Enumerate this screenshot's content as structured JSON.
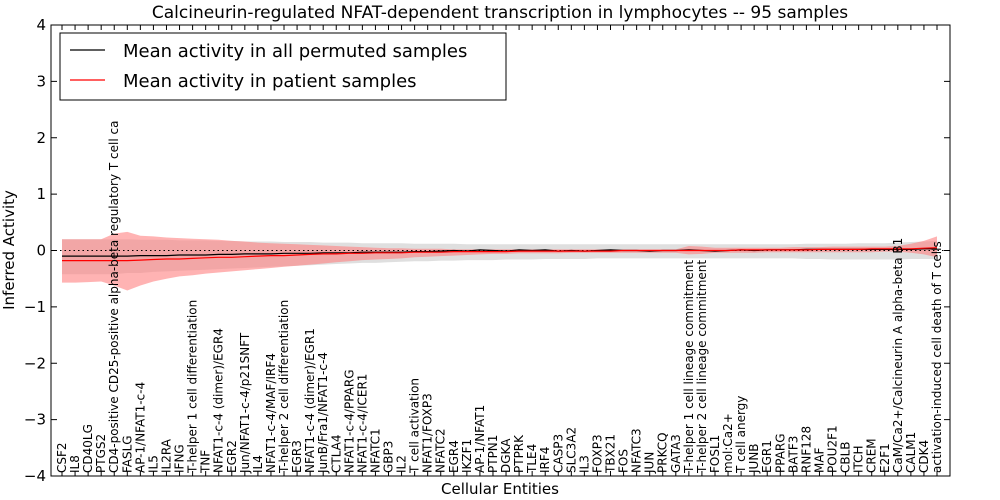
{
  "chart_data": {
    "type": "line",
    "title": "Calcineurin-regulated NFAT-dependent transcription in lymphocytes -- 95 samples",
    "xlabel": "Cellular Entities",
    "ylabel": "Inferred Activity",
    "ylim": [
      -4,
      4
    ],
    "yticks": [
      "4",
      "3",
      "2",
      "1",
      "0",
      "−1",
      "−2",
      "−3",
      "−4"
    ],
    "ytick_values": [
      4,
      3,
      2,
      1,
      0,
      -1,
      -2,
      -3,
      -4
    ],
    "legend_position": "top-left",
    "categories": [
      "CSF2",
      "IL8",
      "CD40LG",
      "PTGS2",
      "CD4-positive CD25-positive alpha-beta regulatory T cell ca",
      "FASLG",
      "AP-1/NFAT1-c-4",
      "IL5",
      "IL2RA",
      "IFNG",
      "T-helper 1 cell differentiation",
      "TNF",
      "NFAT1-c-4 (dimer)/EGR4",
      "EGR2",
      "Jun/NFAT1-c-4/p21SNFT",
      "IL4",
      "NFAT1-c-4/MAF/IRF4",
      "T-helper 2 cell differentiation",
      "EGR3",
      "NFAT1-c-4 (dimer)/EGR1",
      "JunB/Fra1/NFAT1-c-4",
      "CTLA4",
      "NFAT1-c-4/PPARG",
      "NFAT1-c-4/ICER1",
      "NFATC1",
      "GBP3",
      "IL2",
      "T cell activation",
      "NFAT1/FOXP3",
      "NFATC2",
      "EGR4",
      "IKZF1",
      "AP-1/NFAT1",
      "PTPN1",
      "DGKA",
      "PTPRK",
      "TLE4",
      "IRF4",
      "CASP3",
      "SLC3A2",
      "IL3",
      "FOXP3",
      "TBX21",
      "FOS",
      "NFATC3",
      "JUN",
      "PRKCQ",
      "GATA3",
      "T-helper 1 cell lineage commitment",
      "T-helper 2 cell lineage commitment",
      "FOSL1",
      "mol:Ca2+",
      "T cell anergy",
      "JUNB",
      "EGR1",
      "PPARG",
      "BATF3",
      "RNF128",
      "MAF",
      "POU2F1",
      "CBLB",
      "ITCH",
      "CREM",
      "E2F1",
      "CaM/Ca2+/Calcineurin A alpha-beta B1",
      "CALM1",
      "CDK4",
      "activation-induced cell death of T cells"
    ],
    "series": [
      {
        "name": "Mean activity in all permuted samples",
        "color": "#000000",
        "values": [
          -0.1,
          -0.1,
          -0.1,
          -0.1,
          -0.1,
          -0.1,
          -0.09,
          -0.09,
          -0.09,
          -0.08,
          -0.08,
          -0.08,
          -0.07,
          -0.07,
          -0.06,
          -0.06,
          -0.06,
          -0.05,
          -0.05,
          -0.05,
          -0.04,
          -0.04,
          -0.04,
          -0.03,
          -0.03,
          -0.03,
          -0.03,
          -0.02,
          -0.02,
          -0.01,
          0.0,
          -0.01,
          0.01,
          0.0,
          -0.01,
          0.01,
          0.0,
          0.01,
          -0.01,
          0.0,
          -0.01,
          0.0,
          0.01,
          0.0,
          0.0,
          -0.01,
          0.0,
          0.0,
          0.01,
          0.0,
          -0.01,
          0.0,
          0.01,
          0.0,
          0.01,
          0.01,
          0.01,
          0.02,
          0.02,
          0.02,
          0.02,
          0.02,
          0.02,
          0.02,
          0.02,
          0.02,
          0.03,
          0.03
        ],
        "band_low": [
          -0.42,
          -0.42,
          -0.42,
          -0.42,
          -0.42,
          -0.4,
          -0.4,
          -0.38,
          -0.37,
          -0.36,
          -0.35,
          -0.34,
          -0.33,
          -0.32,
          -0.31,
          -0.3,
          -0.29,
          -0.28,
          -0.27,
          -0.26,
          -0.25,
          -0.24,
          -0.23,
          -0.22,
          -0.22,
          -0.21,
          -0.2,
          -0.19,
          -0.19,
          -0.18,
          -0.18,
          -0.17,
          -0.17,
          -0.17,
          -0.16,
          -0.16,
          -0.16,
          -0.15,
          -0.15,
          -0.15,
          -0.15,
          -0.14,
          -0.14,
          -0.14,
          -0.14,
          -0.14,
          -0.14,
          -0.14,
          -0.14,
          -0.14,
          -0.14,
          -0.14,
          -0.14,
          -0.14,
          -0.14,
          -0.14,
          -0.14,
          -0.15,
          -0.15,
          -0.16,
          -0.16,
          -0.16,
          -0.16,
          -0.16,
          -0.16,
          -0.15,
          -0.15,
          -0.15
        ],
        "band_high": [
          0.2,
          0.2,
          0.2,
          0.2,
          0.2,
          0.2,
          0.19,
          0.19,
          0.19,
          0.18,
          0.18,
          0.18,
          0.17,
          0.17,
          0.16,
          0.16,
          0.16,
          0.15,
          0.15,
          0.15,
          0.14,
          0.14,
          0.14,
          0.13,
          0.13,
          0.13,
          0.13,
          0.12,
          0.12,
          0.12,
          0.12,
          0.11,
          0.11,
          0.11,
          0.11,
          0.11,
          0.11,
          0.11,
          0.11,
          0.11,
          0.11,
          0.11,
          0.11,
          0.11,
          0.11,
          0.11,
          0.11,
          0.11,
          0.11,
          0.11,
          0.11,
          0.11,
          0.11,
          0.11,
          0.11,
          0.11,
          0.11,
          0.12,
          0.12,
          0.12,
          0.12,
          0.13,
          0.13,
          0.13,
          0.14,
          0.15,
          0.16,
          0.17
        ],
        "band_color": "#b8b8b8"
      },
      {
        "name": "Mean activity in patient samples",
        "color": "#ff0000",
        "values": [
          -0.18,
          -0.18,
          -0.18,
          -0.18,
          -0.18,
          -0.18,
          -0.17,
          -0.16,
          -0.15,
          -0.15,
          -0.14,
          -0.13,
          -0.12,
          -0.12,
          -0.11,
          -0.1,
          -0.09,
          -0.09,
          -0.08,
          -0.07,
          -0.06,
          -0.06,
          -0.05,
          -0.05,
          -0.04,
          -0.04,
          -0.04,
          -0.03,
          -0.03,
          -0.03,
          -0.02,
          -0.02,
          -0.02,
          -0.02,
          -0.02,
          -0.01,
          -0.01,
          -0.01,
          -0.01,
          -0.01,
          -0.01,
          -0.01,
          -0.01,
          0.0,
          0.0,
          0.0,
          0.0,
          0.0,
          0.0,
          0.0,
          0.0,
          0.0,
          0.01,
          0.01,
          0.01,
          0.01,
          0.01,
          0.01,
          0.02,
          0.02,
          0.02,
          0.02,
          0.03,
          0.03,
          0.03,
          0.03,
          0.04,
          0.05
        ],
        "band_low": [
          -0.57,
          -0.57,
          -0.56,
          -0.55,
          -0.62,
          -0.71,
          -0.62,
          -0.55,
          -0.5,
          -0.46,
          -0.44,
          -0.41,
          -0.39,
          -0.37,
          -0.35,
          -0.33,
          -0.31,
          -0.29,
          -0.27,
          -0.25,
          -0.23,
          -0.21,
          -0.19,
          -0.17,
          -0.16,
          -0.15,
          -0.14,
          -0.12,
          -0.11,
          -0.1,
          -0.09,
          -0.08,
          -0.07,
          -0.06,
          -0.06,
          -0.05,
          -0.05,
          -0.05,
          -0.05,
          -0.04,
          -0.04,
          -0.04,
          -0.04,
          -0.04,
          -0.04,
          -0.04,
          -0.04,
          -0.04,
          -0.07,
          -0.06,
          -0.04,
          -0.04,
          -0.04,
          -0.04,
          -0.03,
          -0.03,
          -0.03,
          -0.03,
          -0.03,
          -0.03,
          -0.03,
          -0.03,
          -0.03,
          -0.02,
          -0.02,
          -0.04,
          -0.07,
          -0.12
        ],
        "band_high": [
          0.2,
          0.2,
          0.2,
          0.2,
          0.3,
          0.33,
          0.26,
          0.25,
          0.23,
          0.22,
          0.21,
          0.2,
          0.19,
          0.17,
          0.16,
          0.14,
          0.13,
          0.12,
          0.11,
          0.1,
          0.09,
          0.08,
          0.07,
          0.06,
          0.05,
          0.04,
          0.04,
          0.03,
          0.03,
          0.03,
          0.02,
          0.02,
          0.02,
          0.02,
          0.02,
          0.02,
          0.02,
          0.02,
          0.02,
          0.02,
          0.02,
          0.02,
          0.02,
          0.02,
          0.02,
          0.02,
          0.02,
          0.02,
          0.08,
          0.07,
          0.05,
          0.05,
          0.05,
          0.05,
          0.05,
          0.05,
          0.06,
          0.06,
          0.06,
          0.07,
          0.07,
          0.07,
          0.07,
          0.07,
          0.08,
          0.12,
          0.17,
          0.25
        ],
        "band_color": "#ff8080"
      }
    ],
    "zero_line": {
      "style": "dotted",
      "color": "#000000",
      "value": 0
    }
  }
}
